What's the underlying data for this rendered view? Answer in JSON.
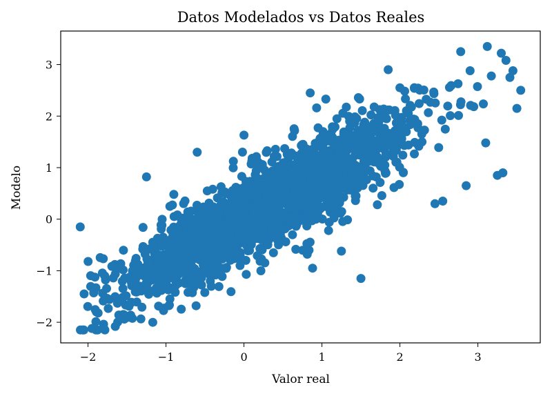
{
  "chart_data": {
    "type": "scatter",
    "title": "Datos Modelados vs Datos Reales",
    "xlabel": "Valor real",
    "ylabel": "Modelo",
    "xlim": [
      -2.35,
      3.8
    ],
    "ylim": [
      -2.4,
      3.65
    ],
    "xticks": [
      -2,
      -1,
      0,
      1,
      2,
      3
    ],
    "yticks": [
      -2,
      -1,
      0,
      1,
      2,
      3
    ],
    "xtick_labels": [
      "−2",
      "−1",
      "0",
      "1",
      "2",
      "3"
    ],
    "ytick_labels": [
      "−2",
      "−1",
      "0",
      "1",
      "2",
      "3"
    ],
    "grid": false,
    "marker_color": "#1f77b4",
    "point_count": 2000,
    "trend": {
      "slope": 0.82,
      "intercept": 0.0,
      "residual_sd": 0.42
    },
    "x_distribution": {
      "mean": 0.3,
      "sd": 0.95,
      "min": -2.1,
      "max": 3.55
    },
    "notable_points": [
      [
        -2.1,
        -0.15
      ],
      [
        -1.25,
        0.82
      ],
      [
        -0.9,
        0.48
      ],
      [
        -0.6,
        1.3
      ],
      [
        -1.95,
        -2.12
      ],
      [
        -1.65,
        -2.08
      ],
      [
        1.5,
        -1.15
      ],
      [
        0.88,
        -0.95
      ],
      [
        3.12,
        3.35
      ],
      [
        2.78,
        3.25
      ],
      [
        3.3,
        3.22
      ],
      [
        1.85,
        2.9
      ],
      [
        3.55,
        2.5
      ],
      [
        3.5,
        2.15
      ],
      [
        2.85,
        0.65
      ],
      [
        3.25,
        0.85
      ],
      [
        3.32,
        0.9
      ],
      [
        3.1,
        1.48
      ],
      [
        -2.05,
        -1.45
      ],
      [
        0.85,
        2.45
      ],
      [
        2.45,
        0.3
      ],
      [
        2.55,
        0.35
      ],
      [
        0.0,
        1.63
      ],
      [
        1.05,
        2.33
      ],
      [
        2.9,
        2.88
      ],
      [
        -1.87,
        -1.82
      ],
      [
        1.25,
        -0.62
      ],
      [
        -0.05,
        -0.9
      ],
      [
        2.0,
        2.55
      ],
      [
        3.45,
        2.88
      ]
    ]
  }
}
